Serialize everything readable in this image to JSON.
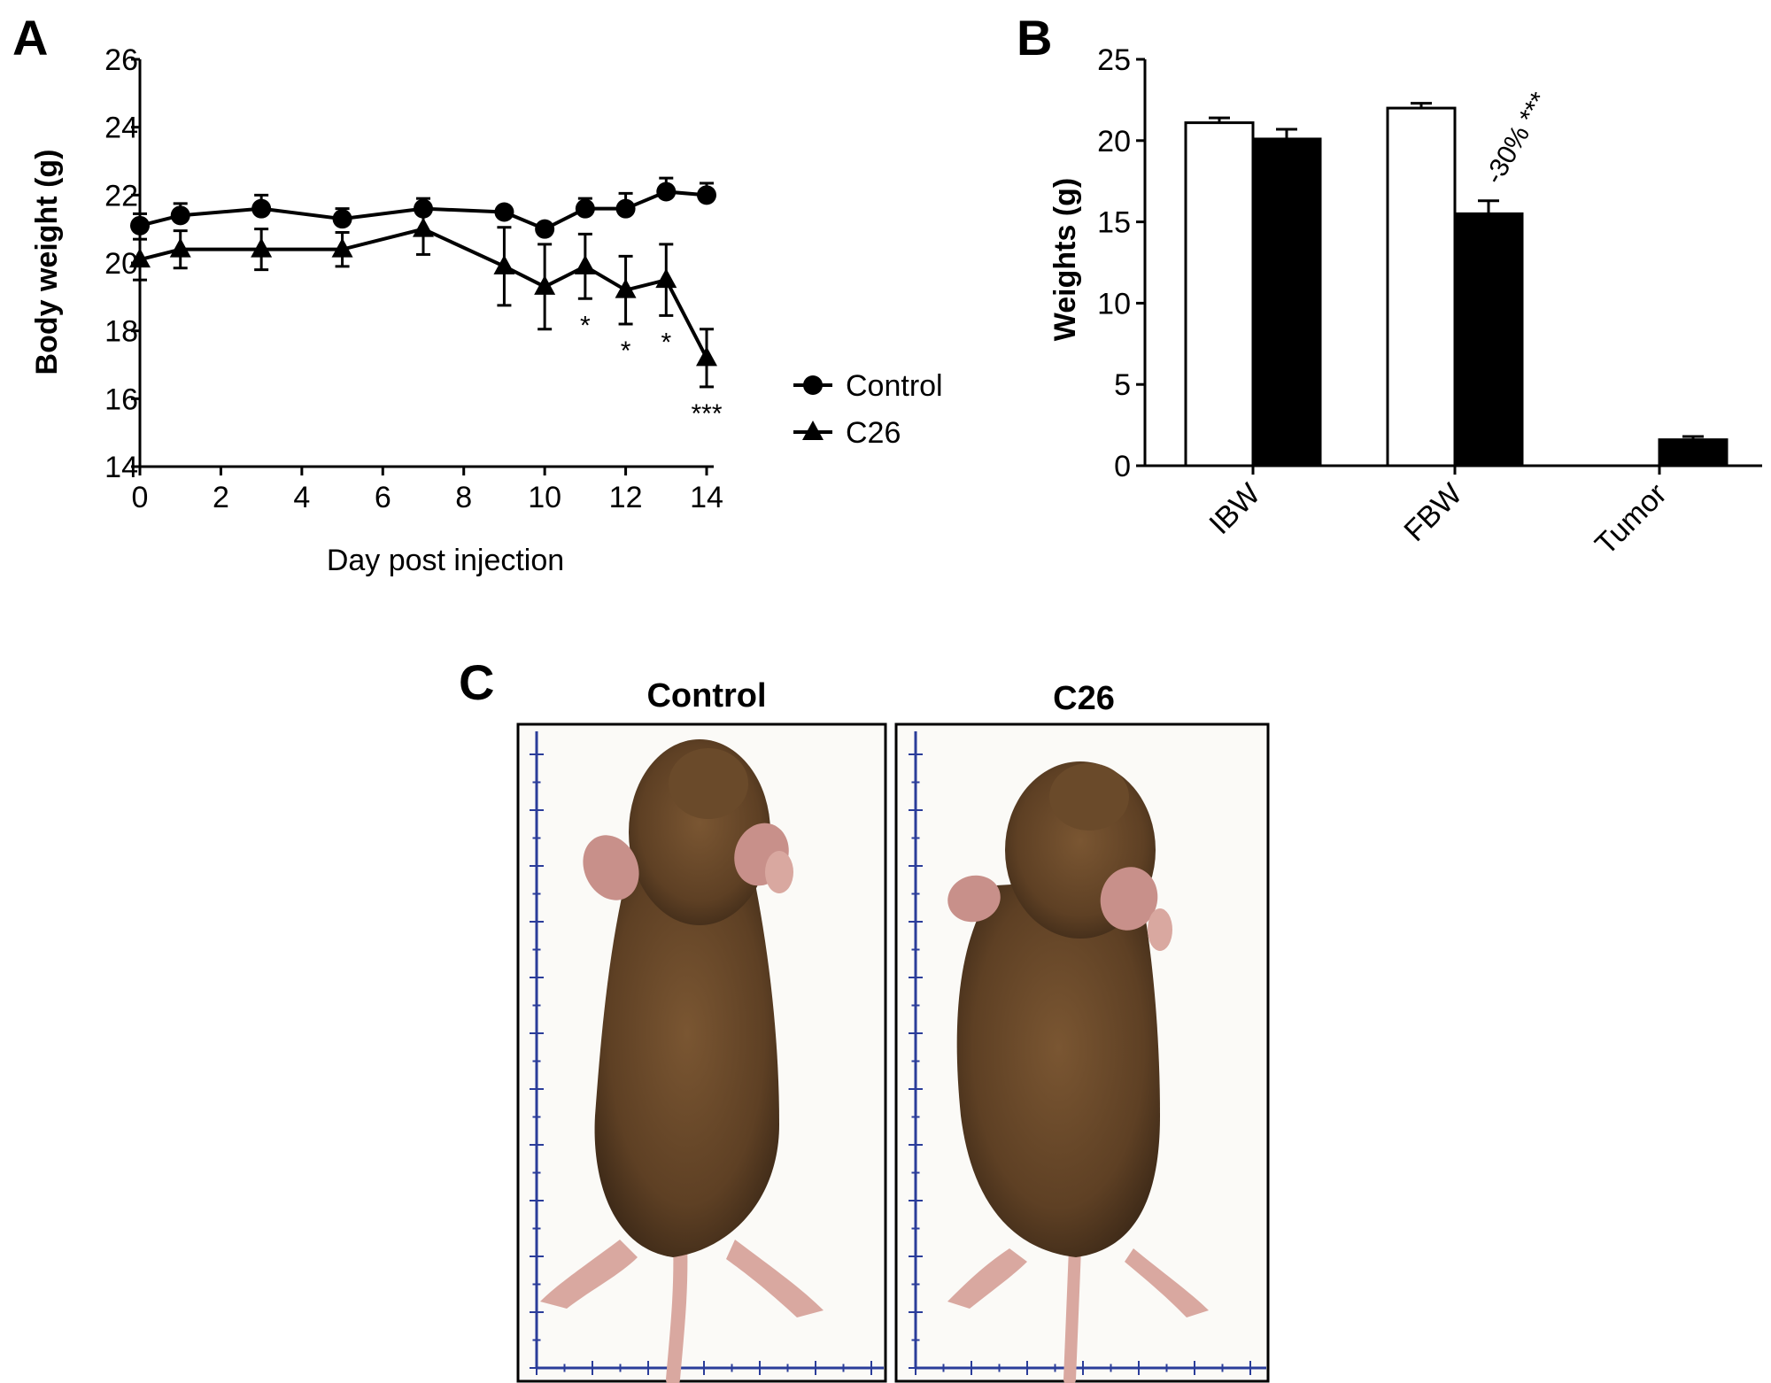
{
  "panel_labels": {
    "a": "A",
    "b": "B",
    "c": "C"
  },
  "colors": {
    "ink": "#000000",
    "paper": "#ffffff",
    "ruler": "#2b3d9a",
    "fur": "#6b4a2c",
    "fur_dark": "#3e2a18",
    "skin": "#d9a8a0"
  },
  "chart_data": [
    {
      "type": "line",
      "panel": "A",
      "xlabel": "Day post injection",
      "ylabel": "Body weight  (g)",
      "xlim": [
        0,
        14
      ],
      "ylim": [
        14,
        26
      ],
      "xticks": [
        0,
        2,
        4,
        6,
        8,
        10,
        12,
        14
      ],
      "yticks": [
        14,
        16,
        18,
        20,
        22,
        24,
        26
      ],
      "legend_position": "right",
      "series": [
        {
          "name": "Control",
          "marker": "circle",
          "x": [
            0,
            1,
            3,
            5,
            7,
            9,
            10,
            11,
            12,
            13,
            14
          ],
          "y": [
            21.1,
            21.4,
            21.6,
            21.3,
            21.6,
            21.5,
            21.0,
            21.6,
            21.6,
            22.1,
            22.0
          ],
          "err": [
            0.35,
            0.35,
            0.4,
            0.3,
            0.3,
            0.15,
            0.15,
            0.3,
            0.45,
            0.4,
            0.35
          ]
        },
        {
          "name": "C26",
          "marker": "triangle",
          "x": [
            0,
            1,
            3,
            5,
            7,
            9,
            10,
            11,
            12,
            13,
            14
          ],
          "y": [
            20.1,
            20.4,
            20.4,
            20.4,
            21.0,
            19.9,
            19.3,
            19.9,
            19.2,
            19.5,
            17.2
          ],
          "err": [
            0.6,
            0.55,
            0.6,
            0.5,
            0.75,
            1.15,
            1.25,
            0.95,
            1.0,
            1.05,
            0.85
          ]
        }
      ],
      "annotations": [
        {
          "x": 11,
          "text": "*"
        },
        {
          "x": 12,
          "text": "*"
        },
        {
          "x": 13,
          "text": "*"
        },
        {
          "x": 14,
          "text": "***"
        }
      ]
    },
    {
      "type": "bar",
      "panel": "B",
      "ylabel": "Weights (g)",
      "ylim": [
        0,
        25
      ],
      "yticks": [
        0,
        5,
        10,
        15,
        20,
        25
      ],
      "categories": [
        "IBW",
        "FBW",
        "Tumor"
      ],
      "series": [
        {
          "fill": "#ffffff",
          "values": [
            21.1,
            22.0,
            null
          ],
          "err": [
            0.3,
            0.3,
            null
          ]
        },
        {
          "fill": "#000000",
          "values": [
            20.1,
            15.5,
            1.6
          ],
          "err": [
            0.6,
            0.8,
            0.2
          ]
        }
      ],
      "annotations": [
        {
          "category": "FBW",
          "text": "-30% ***"
        }
      ]
    }
  ],
  "photos": {
    "control": {
      "title": "Control"
    },
    "c26": {
      "title": "C26"
    }
  }
}
